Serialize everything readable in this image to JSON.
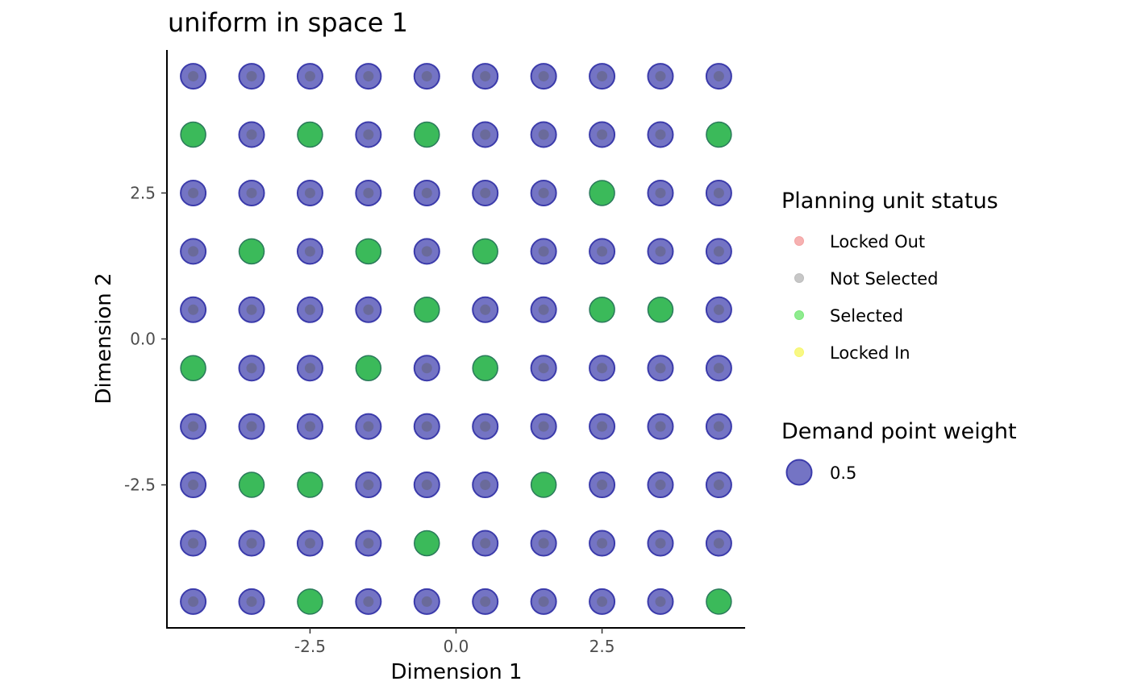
{
  "chart_data": {
    "type": "scatter",
    "title": "uniform in space 1",
    "xlabel": "Dimension 1",
    "ylabel": "Dimension 2",
    "xlim": [
      -4.95,
      4.95
    ],
    "ylim": [
      -4.95,
      4.95
    ],
    "x_ticks": [
      -2.5,
      0.0,
      2.5
    ],
    "x_tick_labels": [
      "-2.5",
      "0.0",
      "2.5"
    ],
    "y_ticks": [
      -2.5,
      0.0,
      2.5
    ],
    "y_tick_labels": [
      "-2.5",
      "0.0",
      "2.5"
    ],
    "grid": false,
    "grid_x": [
      -4.5,
      -3.5,
      -2.5,
      -1.5,
      -0.5,
      0.5,
      1.5,
      2.5,
      3.5,
      4.5
    ],
    "grid_y": [
      4.5,
      3.5,
      2.5,
      1.5,
      0.5,
      -0.5,
      -1.5,
      -2.5,
      -3.5,
      -4.5
    ],
    "status_grid": [
      [
        "N",
        "N",
        "N",
        "N",
        "N",
        "N",
        "N",
        "N",
        "N",
        "N"
      ],
      [
        "S",
        "N",
        "S",
        "N",
        "S",
        "N",
        "N",
        "N",
        "N",
        "S"
      ],
      [
        "N",
        "N",
        "N",
        "N",
        "N",
        "N",
        "N",
        "S",
        "N",
        "N"
      ],
      [
        "N",
        "S",
        "N",
        "S",
        "N",
        "S",
        "N",
        "N",
        "N",
        "N"
      ],
      [
        "N",
        "N",
        "N",
        "N",
        "S",
        "N",
        "N",
        "S",
        "S",
        "N"
      ],
      [
        "S",
        "N",
        "N",
        "S",
        "N",
        "S",
        "N",
        "N",
        "N",
        "N"
      ],
      [
        "N",
        "N",
        "N",
        "N",
        "N",
        "N",
        "N",
        "N",
        "N",
        "N"
      ],
      [
        "N",
        "S",
        "S",
        "N",
        "N",
        "N",
        "S",
        "N",
        "N",
        "N"
      ],
      [
        "N",
        "N",
        "N",
        "N",
        "S",
        "N",
        "N",
        "N",
        "N",
        "N"
      ],
      [
        "N",
        "N",
        "S",
        "N",
        "N",
        "N",
        "N",
        "N",
        "N",
        "S"
      ]
    ],
    "demand_point_weight": 0.5,
    "colors": {
      "demand_fill": "#7474c4",
      "demand_stroke": "#3b3bab",
      "selected_fill": "#3bba5a",
      "selected_stroke": "#2a7a5a",
      "not_selected_dot": "#6a6a9a"
    },
    "legend": {
      "placement": "right",
      "status_title": "Planning unit status",
      "status_items": [
        {
          "label": "Locked Out",
          "color": "#f4a3a3"
        },
        {
          "label": "Not Selected",
          "color": "#bdbdbd"
        },
        {
          "label": "Selected",
          "color": "#7be87b"
        },
        {
          "label": "Locked In",
          "color": "#f7f76e"
        }
      ],
      "weight_title": "Demand point weight",
      "weight_items": [
        {
          "label": "0.5"
        }
      ]
    }
  }
}
